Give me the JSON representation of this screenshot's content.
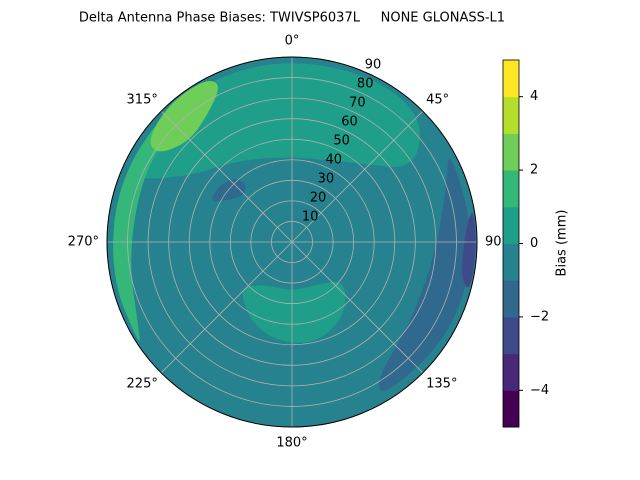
{
  "chart_data": {
    "type": "polar_contour",
    "title": "Delta Antenna Phase Biases: TWIVSP6037L     NONE GLONASS-L1",
    "rlim": [
      0,
      90
    ],
    "rticks": [
      10,
      20,
      30,
      40,
      50,
      60,
      70,
      80,
      90
    ],
    "thetaticks": [
      {
        "value": 0,
        "label": "0°"
      },
      {
        "value": 45,
        "label": "45°"
      },
      {
        "value": 90,
        "label": "90°"
      },
      {
        "value": 135,
        "label": "135°"
      },
      {
        "value": 180,
        "label": "180°"
      },
      {
        "value": 225,
        "label": "225°"
      },
      {
        "value": 270,
        "label": "270°"
      },
      {
        "value": 315,
        "label": "315°"
      }
    ],
    "grid": true,
    "levels": [
      -5,
      -4,
      -3,
      -2,
      -1,
      0,
      1,
      2,
      3,
      4,
      5
    ],
    "colors": [
      "#440154",
      "#482878",
      "#3e4a89",
      "#31688e",
      "#26828e",
      "#1f9e89",
      "#35b779",
      "#6ece58",
      "#b5de2b",
      "#fde725"
    ],
    "regions": [
      {
        "value": -1,
        "theta": [
          0,
          90,
          180,
          270
        ],
        "r": [
          90,
          90,
          90,
          90
        ]
      },
      {
        "value": 0,
        "theta": [
          290,
          320,
          350,
          20,
          45,
          60,
          40,
          15,
          350,
          325,
          300
        ],
        "r": [
          90,
          90,
          90,
          90,
          90,
          70,
          50,
          42,
          42,
          48,
          62
        ]
      },
      {
        "value": 0,
        "theta": [
          125,
          145,
          170,
          200,
          230,
          215,
          180,
          150
        ],
        "r": [
          32,
          45,
          52,
          48,
          35,
          25,
          24,
          24
        ]
      },
      {
        "value": 1,
        "theta": [
          235,
          260,
          290,
          320,
          318,
          295,
          265,
          240
        ],
        "r": [
          90,
          90,
          90,
          90,
          82,
          80,
          80,
          86
        ]
      },
      {
        "value": 2,
        "theta": [
          305,
          318,
          332,
          336,
          326,
          314,
          303
        ],
        "r": [
          86,
          90,
          90,
          84,
          74,
          70,
          78
        ]
      },
      {
        "value": -2,
        "theta": [
          58,
          90,
          120,
          150,
          148,
          125,
          95,
          70
        ],
        "r": [
          90,
          90,
          90,
          88,
          78,
          70,
          70,
          80
        ]
      },
      {
        "value": -2,
        "theta": [
          295,
          305,
          318,
          322,
          310
        ],
        "r": [
          45,
          36,
          32,
          40,
          45
        ]
      },
      {
        "value": -3,
        "theta": [
          78,
          92,
          106,
          102,
          88
        ],
        "r": [
          90,
          90,
          90,
          84,
          84
        ]
      }
    ],
    "colorbar_label": "Bias (mm)",
    "colorbar_ticks": [
      {
        "value": -4,
        "label": "−4"
      },
      {
        "value": -2,
        "label": "−2"
      },
      0,
      2,
      4
    ]
  }
}
